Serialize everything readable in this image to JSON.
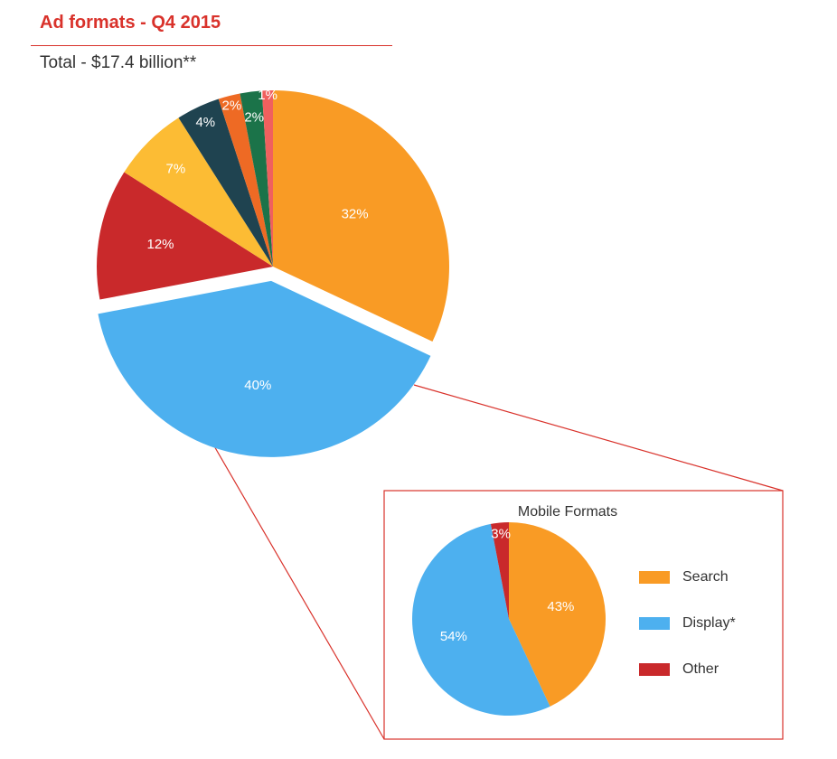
{
  "header": {
    "title": "Ad formats - Q4 2015",
    "subtitle": "Total - $17.4 billion**"
  },
  "chart_data": [
    {
      "type": "pie",
      "slices": [
        {
          "value": 32,
          "label": "32%",
          "color": "#f99b25"
        },
        {
          "value": 40,
          "label": "40%",
          "color": "#4db0ef",
          "exploded": true
        },
        {
          "value": 12,
          "label": "12%",
          "color": "#c9292b"
        },
        {
          "value": 7,
          "label": "7%",
          "color": "#fcbc34"
        },
        {
          "value": 4,
          "label": "4%",
          "color": "#1f4350"
        },
        {
          "value": 2,
          "label": "2%",
          "color": "#ee6a24"
        },
        {
          "value": 2,
          "label": "2%",
          "color": "#1b7349"
        },
        {
          "value": 1,
          "label": "1%",
          "color": "#f0605e"
        }
      ]
    },
    {
      "type": "pie",
      "title": "Mobile Formats",
      "slices": [
        {
          "name": "Search",
          "value": 43,
          "label": "43%",
          "color": "#f99b25"
        },
        {
          "name": "Display*",
          "value": 54,
          "label": "54%",
          "color": "#4db0ef"
        },
        {
          "name": "Other",
          "value": 3,
          "label": "3%",
          "color": "#c9292b"
        }
      ],
      "legend": "right"
    }
  ],
  "colors": {
    "accent": "#d9322b"
  }
}
